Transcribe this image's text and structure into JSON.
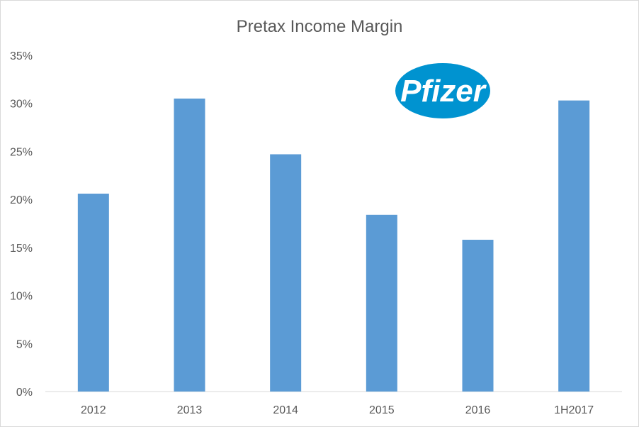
{
  "colors": {
    "bar": "#5b9bd5",
    "grid": "#d9d9d9",
    "text": "#595959",
    "logo": "#0093d0"
  },
  "logo": {
    "icon": "pfizer-logo",
    "text": "Pfizer"
  },
  "chart_data": {
    "type": "bar",
    "title": "Pretax Income Margin",
    "xlabel": "",
    "ylabel": "",
    "categories": [
      "2012",
      "2013",
      "2014",
      "2015",
      "2016",
      "1H2017"
    ],
    "values": [
      20.6,
      30.5,
      24.7,
      18.4,
      15.8,
      30.3
    ],
    "ylim": [
      0,
      35
    ],
    "yticks": [
      "0%",
      "5%",
      "10%",
      "15%",
      "20%",
      "25%",
      "30%",
      "35%"
    ],
    "grid": false,
    "legend": "none"
  }
}
